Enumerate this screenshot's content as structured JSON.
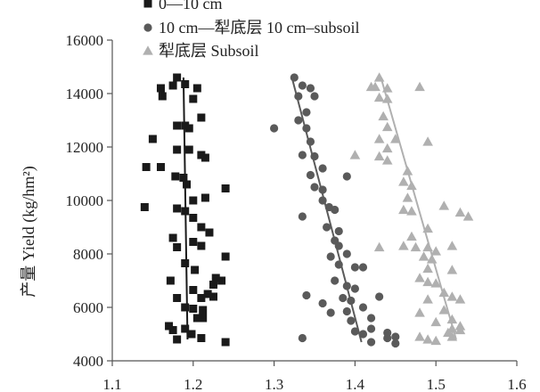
{
  "chart_data": {
    "type": "scatter",
    "title": "",
    "xlabel": "",
    "ylabel": "产量 Yield (kg/hm²)",
    "xlim": [
      1.1,
      1.6
    ],
    "ylim": [
      4000,
      16000
    ],
    "xticks": [
      "1.1",
      "1.2",
      "1.3",
      "1.4",
      "1.5",
      "1.6"
    ],
    "yticks": [
      "4000",
      "6000",
      "8000",
      "10000",
      "12000",
      "14000",
      "16000"
    ],
    "grid": false,
    "legend_position": "top-left",
    "series": [
      {
        "name": "0—10 cm",
        "marker": "square",
        "color": "#1a1a1a",
        "points": [
          [
            1.18,
            14600
          ],
          [
            1.16,
            14200
          ],
          [
            1.162,
            13900
          ],
          [
            1.175,
            14300
          ],
          [
            1.19,
            14350
          ],
          [
            1.205,
            14200
          ],
          [
            1.2,
            13800
          ],
          [
            1.21,
            13100
          ],
          [
            1.18,
            12800
          ],
          [
            1.19,
            12800
          ],
          [
            1.195,
            12700
          ],
          [
            1.15,
            12300
          ],
          [
            1.18,
            11900
          ],
          [
            1.195,
            11900
          ],
          [
            1.21,
            11700
          ],
          [
            1.215,
            11600
          ],
          [
            1.142,
            11250
          ],
          [
            1.16,
            11250
          ],
          [
            1.178,
            10900
          ],
          [
            1.188,
            10850
          ],
          [
            1.192,
            10600
          ],
          [
            1.24,
            10450
          ],
          [
            1.2,
            10000
          ],
          [
            1.215,
            10100
          ],
          [
            1.14,
            9750
          ],
          [
            1.18,
            9700
          ],
          [
            1.19,
            9600
          ],
          [
            1.2,
            9350
          ],
          [
            1.21,
            9000
          ],
          [
            1.22,
            8800
          ],
          [
            1.175,
            8600
          ],
          [
            1.2,
            8450
          ],
          [
            1.18,
            8250
          ],
          [
            1.21,
            8300
          ],
          [
            1.24,
            7900
          ],
          [
            1.19,
            7650
          ],
          [
            1.202,
            7400
          ],
          [
            1.228,
            7100
          ],
          [
            1.235,
            7000
          ],
          [
            1.172,
            7000
          ],
          [
            1.225,
            6850
          ],
          [
            1.2,
            6650
          ],
          [
            1.218,
            6500
          ],
          [
            1.18,
            6350
          ],
          [
            1.21,
            6350
          ],
          [
            1.225,
            6400
          ],
          [
            1.19,
            6000
          ],
          [
            1.2,
            5950
          ],
          [
            1.212,
            5900
          ],
          [
            1.205,
            5600
          ],
          [
            1.212,
            5600
          ],
          [
            1.17,
            5300
          ],
          [
            1.175,
            5150
          ],
          [
            1.19,
            5200
          ],
          [
            1.198,
            5000
          ],
          [
            1.21,
            4850
          ],
          [
            1.18,
            4800
          ],
          [
            1.24,
            4700
          ]
        ],
        "trendline": [
          [
            1.188,
            14600
          ],
          [
            1.193,
            4800
          ]
        ]
      },
      {
        "name": "10 cm—犁底层  10 cm–subsoil",
        "marker": "circle",
        "color": "#5a5a5a",
        "points": [
          [
            1.325,
            14600
          ],
          [
            1.335,
            14300
          ],
          [
            1.345,
            14200
          ],
          [
            1.33,
            13900
          ],
          [
            1.35,
            13900
          ],
          [
            1.34,
            13300
          ],
          [
            1.33,
            13000
          ],
          [
            1.3,
            12700
          ],
          [
            1.34,
            12700
          ],
          [
            1.345,
            12200
          ],
          [
            1.335,
            11700
          ],
          [
            1.35,
            11650
          ],
          [
            1.36,
            11200
          ],
          [
            1.345,
            10950
          ],
          [
            1.39,
            10900
          ],
          [
            1.35,
            10500
          ],
          [
            1.36,
            10400
          ],
          [
            1.36,
            10000
          ],
          [
            1.368,
            9750
          ],
          [
            1.375,
            9650
          ],
          [
            1.335,
            9400
          ],
          [
            1.365,
            9000
          ],
          [
            1.38,
            8850
          ],
          [
            1.375,
            8500
          ],
          [
            1.38,
            8300
          ],
          [
            1.39,
            8000
          ],
          [
            1.37,
            7900
          ],
          [
            1.38,
            7600
          ],
          [
            1.4,
            7500
          ],
          [
            1.41,
            7500
          ],
          [
            1.375,
            7000
          ],
          [
            1.39,
            6800
          ],
          [
            1.4,
            6700
          ],
          [
            1.385,
            6350
          ],
          [
            1.395,
            6250
          ],
          [
            1.34,
            6450
          ],
          [
            1.36,
            6150
          ],
          [
            1.43,
            6400
          ],
          [
            1.41,
            6000
          ],
          [
            1.37,
            5800
          ],
          [
            1.39,
            5850
          ],
          [
            1.42,
            5600
          ],
          [
            1.395,
            5500
          ],
          [
            1.42,
            5200
          ],
          [
            1.4,
            5100
          ],
          [
            1.41,
            5000
          ],
          [
            1.44,
            5050
          ],
          [
            1.45,
            4900
          ],
          [
            1.44,
            4850
          ],
          [
            1.42,
            4700
          ],
          [
            1.45,
            4650
          ],
          [
            1.335,
            4850
          ]
        ],
        "trendline": [
          [
            1.322,
            14600
          ],
          [
            1.408,
            4700
          ]
        ]
      },
      {
        "name": "犁底层  Subsoil",
        "marker": "triangle",
        "color": "#b0b0b0",
        "points": [
          [
            1.43,
            14600
          ],
          [
            1.42,
            14250
          ],
          [
            1.425,
            14250
          ],
          [
            1.44,
            14200
          ],
          [
            1.48,
            14250
          ],
          [
            1.43,
            13850
          ],
          [
            1.44,
            13800
          ],
          [
            1.435,
            13150
          ],
          [
            1.44,
            12750
          ],
          [
            1.43,
            12300
          ],
          [
            1.45,
            12300
          ],
          [
            1.49,
            12200
          ],
          [
            1.44,
            11950
          ],
          [
            1.4,
            11700
          ],
          [
            1.44,
            11500
          ],
          [
            1.43,
            11650
          ],
          [
            1.465,
            11100
          ],
          [
            1.46,
            10700
          ],
          [
            1.47,
            10550
          ],
          [
            1.465,
            10100
          ],
          [
            1.46,
            9650
          ],
          [
            1.47,
            9600
          ],
          [
            1.51,
            9800
          ],
          [
            1.53,
            9550
          ],
          [
            1.54,
            9400
          ],
          [
            1.49,
            8950
          ],
          [
            1.47,
            8650
          ],
          [
            1.46,
            8300
          ],
          [
            1.475,
            8250
          ],
          [
            1.49,
            8250
          ],
          [
            1.5,
            8100
          ],
          [
            1.52,
            8300
          ],
          [
            1.43,
            8250
          ],
          [
            1.485,
            7900
          ],
          [
            1.495,
            7800
          ],
          [
            1.49,
            7450
          ],
          [
            1.52,
            7400
          ],
          [
            1.48,
            7100
          ],
          [
            1.49,
            6950
          ],
          [
            1.5,
            6900
          ],
          [
            1.51,
            6550
          ],
          [
            1.52,
            6400
          ],
          [
            1.49,
            6300
          ],
          [
            1.53,
            6300
          ],
          [
            1.51,
            5900
          ],
          [
            1.48,
            5800
          ],
          [
            1.52,
            5550
          ],
          [
            1.5,
            5450
          ],
          [
            1.53,
            5300
          ],
          [
            1.52,
            5200
          ],
          [
            1.53,
            5150
          ],
          [
            1.515,
            5050
          ],
          [
            1.48,
            4900
          ],
          [
            1.49,
            4800
          ],
          [
            1.5,
            4750
          ],
          [
            1.52,
            4900
          ]
        ],
        "trendline": [
          [
            1.432,
            14600
          ],
          [
            1.525,
            4800
          ]
        ]
      }
    ]
  }
}
